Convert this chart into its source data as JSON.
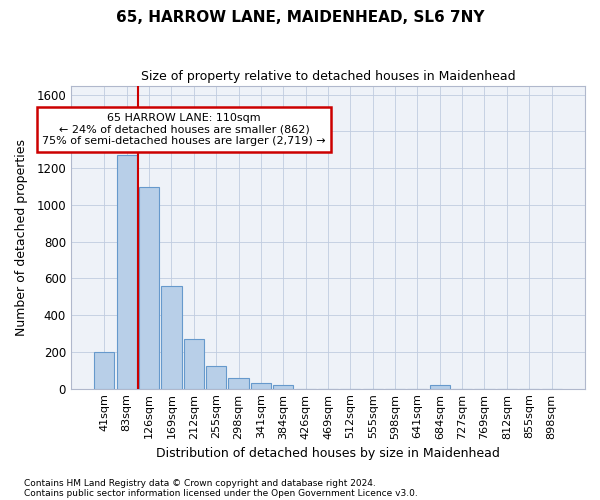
{
  "title1": "65, HARROW LANE, MAIDENHEAD, SL6 7NY",
  "title2": "Size of property relative to detached houses in Maidenhead",
  "xlabel": "Distribution of detached houses by size in Maidenhead",
  "ylabel": "Number of detached properties",
  "footnote1": "Contains HM Land Registry data © Crown copyright and database right 2024.",
  "footnote2": "Contains public sector information licensed under the Open Government Licence v3.0.",
  "bar_labels": [
    "41sqm",
    "83sqm",
    "126sqm",
    "169sqm",
    "212sqm",
    "255sqm",
    "298sqm",
    "341sqm",
    "384sqm",
    "426sqm",
    "469sqm",
    "512sqm",
    "555sqm",
    "598sqm",
    "641sqm",
    "684sqm",
    "727sqm",
    "769sqm",
    "812sqm",
    "855sqm",
    "898sqm"
  ],
  "bar_values": [
    200,
    1270,
    1100,
    560,
    270,
    125,
    60,
    30,
    20,
    0,
    0,
    0,
    0,
    0,
    0,
    20,
    0,
    0,
    0,
    0,
    0
  ],
  "bar_color": "#b8cfe8",
  "bar_edge_color": "#6699cc",
  "grid_color": "#c0cce0",
  "bg_color": "#eef2f8",
  "red_line_color": "#cc0000",
  "annotation_line1": "65 HARROW LANE: 110sqm",
  "annotation_line2": "← 24% of detached houses are smaller (862)",
  "annotation_line3": "75% of semi-detached houses are larger (2,719) →",
  "annotation_box_color": "#cc0000",
  "ylim": [
    0,
    1650
  ],
  "yticks": [
    0,
    200,
    400,
    600,
    800,
    1000,
    1200,
    1400,
    1600
  ]
}
